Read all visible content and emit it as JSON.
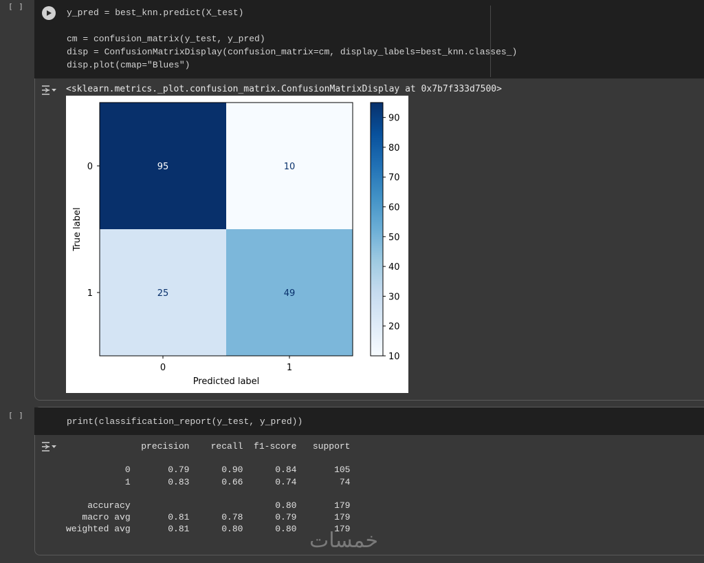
{
  "cell1": {
    "execution_count": "[ ]",
    "code_lines": [
      "y_pred = best_knn.predict(X_test)",
      "",
      "cm = confusion_matrix(y_test, y_pred)",
      "disp = ConfusionMatrixDisplay(confusion_matrix=cm, display_labels=best_knn.classes_)",
      "disp.plot(cmap=\"Blues\")"
    ],
    "output_text": "<sklearn.metrics._plot.confusion_matrix.ConfusionMatrixDisplay at 0x7b7f333d7500>"
  },
  "cell2": {
    "execution_count": "[ ]",
    "code_line": "print(classification_report(y_test, y_pred))",
    "report_lines": [
      "              precision    recall  f1-score   support",
      "",
      "           0       0.79      0.90      0.84       105",
      "           1       0.83      0.66      0.74        74",
      "",
      "    accuracy                           0.80       179",
      "   macro avg       0.81      0.78      0.79       179",
      "weighted avg       0.81      0.80      0.80       179"
    ]
  },
  "chart_data": {
    "type": "heatmap",
    "rows": [
      "0",
      "1"
    ],
    "cols": [
      "0",
      "1"
    ],
    "values": [
      [
        95,
        10
      ],
      [
        25,
        49
      ]
    ],
    "xlabel": "Predicted label",
    "ylabel": "True label",
    "colormap": "Blues",
    "colorbar_range": [
      10,
      95
    ],
    "colorbar_ticks": [
      10,
      20,
      30,
      40,
      50,
      60,
      70,
      80,
      90
    ]
  },
  "watermark": "خمسات",
  "icons": [
    "run-icon",
    "output-toggle-icon"
  ],
  "colors": {
    "background": "#383838",
    "code_bg": "#1f1f1f",
    "text": "#d4d4d4"
  }
}
